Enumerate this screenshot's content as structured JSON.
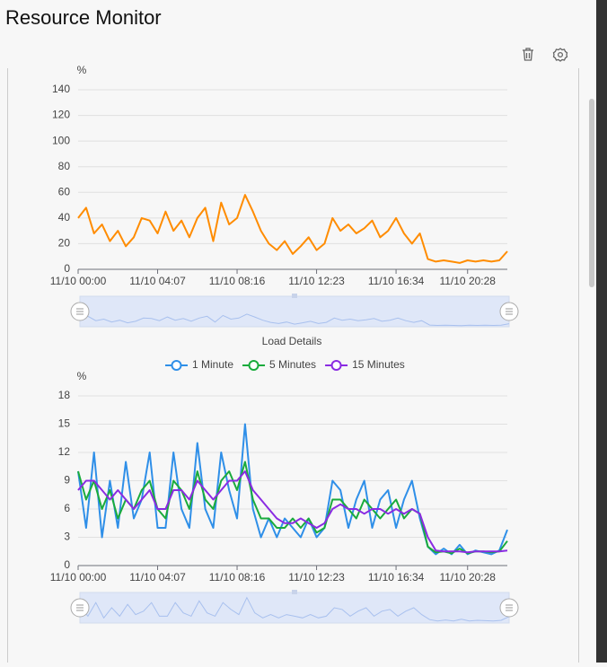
{
  "header": {
    "title": "Resource Monitor"
  },
  "chart_data": [
    {
      "type": "line",
      "y_label": "%",
      "categories": [
        "11/10 00:00",
        null,
        null,
        null,
        null,
        null,
        null,
        null,
        null,
        null,
        "11/10 04:07",
        null,
        null,
        null,
        null,
        null,
        null,
        null,
        null,
        null,
        "11/10 08:16",
        null,
        null,
        null,
        null,
        null,
        null,
        null,
        null,
        null,
        "11/10 12:23",
        null,
        null,
        null,
        null,
        null,
        null,
        null,
        null,
        null,
        "11/10 16:34",
        null,
        null,
        null,
        null,
        null,
        null,
        null,
        null,
        "11/10 20:28",
        null,
        null,
        null,
        null,
        null
      ],
      "series": [
        {
          "color": "#ff8c00",
          "values": [
            40,
            48,
            28,
            35,
            22,
            30,
            18,
            25,
            40,
            38,
            28,
            45,
            30,
            38,
            25,
            40,
            48,
            22,
            52,
            35,
            40,
            58,
            45,
            30,
            20,
            15,
            22,
            12,
            18,
            25,
            15,
            20,
            40,
            30,
            35,
            28,
            32,
            38,
            25,
            30,
            40,
            28,
            20,
            28,
            8,
            6,
            7,
            6,
            5,
            7,
            6,
            7,
            6,
            7,
            14
          ]
        }
      ],
      "ylim": [
        0,
        140
      ],
      "yticks": [
        0,
        20,
        40,
        60,
        80,
        100,
        120,
        140
      ],
      "grid": true
    },
    {
      "type": "line",
      "title": "Load Details",
      "y_label": "%",
      "categories": [
        "11/10 00:00",
        null,
        null,
        null,
        null,
        null,
        null,
        null,
        null,
        null,
        "11/10 04:07",
        null,
        null,
        null,
        null,
        null,
        null,
        null,
        null,
        null,
        "11/10 08:16",
        null,
        null,
        null,
        null,
        null,
        null,
        null,
        null,
        null,
        "11/10 12:23",
        null,
        null,
        null,
        null,
        null,
        null,
        null,
        null,
        null,
        "11/10 16:34",
        null,
        null,
        null,
        null,
        null,
        null,
        null,
        null,
        "11/10 20:28",
        null,
        null,
        null,
        null,
        null
      ],
      "series": [
        {
          "name": "1 Minute",
          "color": "#2f8fe8",
          "values": [
            10,
            4,
            12,
            3,
            9,
            4,
            11,
            5,
            7,
            12,
            4,
            4,
            12,
            6,
            4,
            13,
            6,
            4,
            12,
            8,
            5,
            15,
            6,
            3,
            5,
            3,
            5,
            4,
            3,
            5,
            3,
            4,
            9,
            8,
            4,
            7,
            9,
            4,
            7,
            8,
            4,
            7,
            9,
            5,
            2,
            1.2,
            1.8,
            1.2,
            2.2,
            1.2,
            1.6,
            1.4,
            1.2,
            1.6,
            3.8
          ]
        },
        {
          "name": "5 Minutes",
          "color": "#1aab3c",
          "values": [
            10,
            7,
            9,
            6,
            8,
            5,
            7,
            6,
            8,
            9,
            6,
            5,
            9,
            8,
            6,
            10,
            7,
            6,
            9,
            10,
            8,
            11,
            7,
            5,
            5,
            4,
            4,
            5,
            4,
            5,
            3.5,
            4,
            7,
            7,
            6,
            5,
            7,
            6,
            5,
            6,
            7,
            5,
            6,
            5.5,
            2,
            1.4,
            1.5,
            1.3,
            1.8,
            1.3,
            1.5,
            1.5,
            1.4,
            1.5,
            2.6
          ]
        },
        {
          "name": "15 Minutes",
          "color": "#8a2be2",
          "values": [
            8,
            9,
            9,
            8,
            7,
            8,
            7,
            6,
            7,
            8,
            6,
            6,
            8,
            8,
            7,
            9,
            8,
            7,
            8,
            9,
            9,
            10,
            8,
            7,
            6,
            5,
            4.5,
            4.5,
            5,
            4.5,
            4,
            4.5,
            6,
            6.5,
            6,
            6,
            5.5,
            6,
            6,
            5.5,
            6,
            5.5,
            6,
            5.5,
            3,
            1.6,
            1.5,
            1.5,
            1.5,
            1.4,
            1.5,
            1.5,
            1.5,
            1.5,
            1.6
          ]
        }
      ],
      "ylim": [
        0,
        18
      ],
      "yticks": [
        0,
        3,
        6,
        9,
        12,
        15,
        18
      ],
      "grid": true
    }
  ]
}
